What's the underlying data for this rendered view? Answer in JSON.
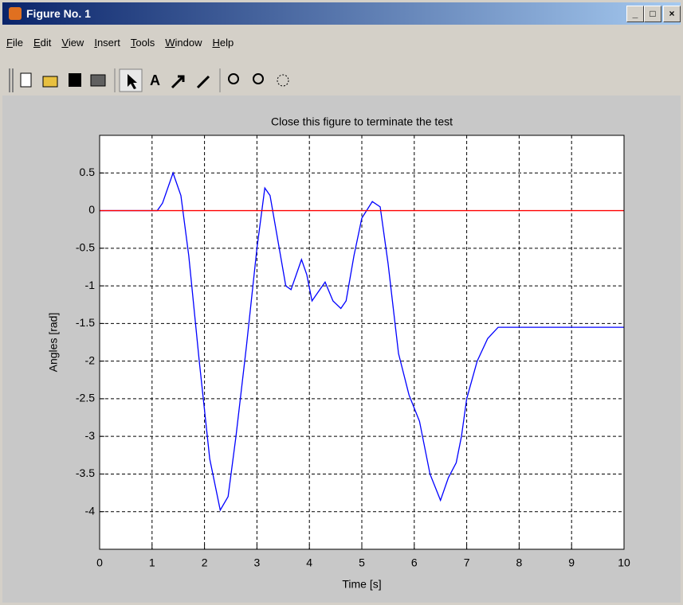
{
  "window": {
    "title": "Figure No. 1",
    "menu": [
      "File",
      "Edit",
      "View",
      "Insert",
      "Tools",
      "Window",
      "Help"
    ]
  },
  "chart_data": {
    "type": "line",
    "title": "Close this figure to terminate the test",
    "x_label": "Time [s]",
    "y_label": "Angles [rad]",
    "series": [
      {
        "color": "#0000ff",
        "x": [
          0,
          1.1,
          1.2,
          1.4,
          1.55,
          1.7,
          1.9,
          2.1,
          2.3,
          2.45,
          2.6,
          2.8,
          3.0,
          3.15,
          3.25,
          3.4,
          3.55,
          3.65,
          3.85,
          3.95,
          4.05,
          4.15,
          4.3,
          4.45,
          4.6,
          4.7,
          4.85,
          5.0,
          5.2,
          5.35,
          5.5,
          5.7,
          5.9,
          6.1,
          6.3,
          6.5,
          6.65,
          6.8,
          6.9,
          7.0,
          7.2,
          7.4,
          7.6,
          10
        ],
        "values": [
          0,
          0,
          0.1,
          0.5,
          0.2,
          -0.6,
          -2.0,
          -3.3,
          -3.98,
          -3.8,
          -3.0,
          -1.8,
          -0.5,
          0.3,
          0.2,
          -0.4,
          -1.0,
          -1.05,
          -0.65,
          -0.85,
          -1.2,
          -1.1,
          -0.95,
          -1.2,
          -1.3,
          -1.2,
          -0.6,
          -0.1,
          0.12,
          0.05,
          -0.7,
          -1.9,
          -2.45,
          -2.8,
          -3.5,
          -3.85,
          -3.55,
          -3.35,
          -3.0,
          -2.5,
          -2.0,
          -1.7,
          -1.55,
          -1.55
        ]
      },
      {
        "color": "#ff0000",
        "x": [
          0,
          10
        ],
        "values": [
          0,
          0
        ]
      }
    ],
    "xlim": [
      0,
      10
    ],
    "xticks": [
      0,
      1,
      2,
      3,
      4,
      5,
      6,
      7,
      8,
      9,
      10
    ],
    "ylim": [
      -4.5,
      1
    ],
    "yticks": [
      -4,
      -3.5,
      -3,
      -2.5,
      -2,
      -1.5,
      -1,
      -0.5,
      0,
      0.5
    ],
    "grid": true
  }
}
